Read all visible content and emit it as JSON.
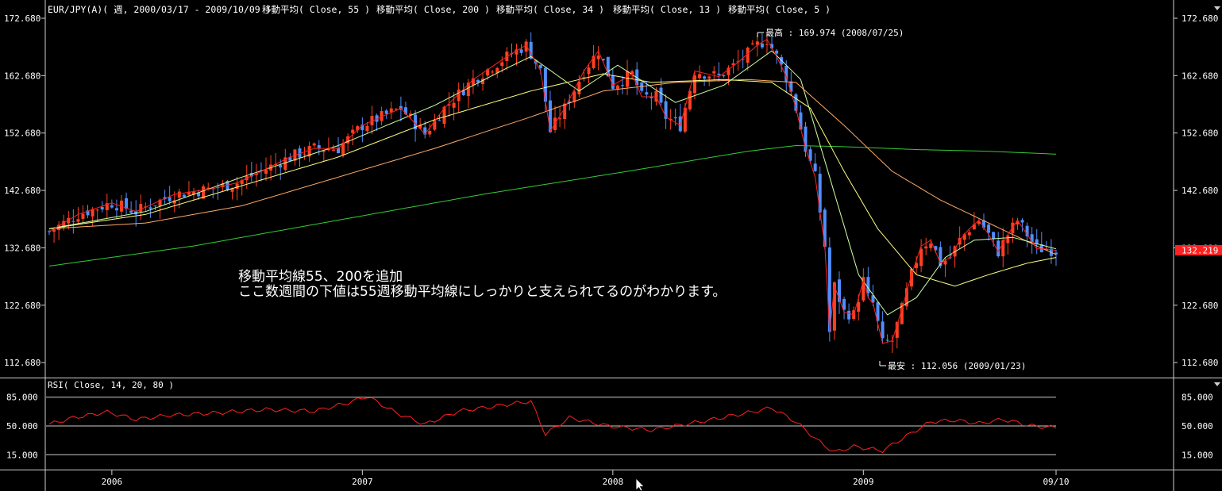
{
  "header": {
    "symbol": "EUR/JPY(A)( 週, 2000/03/17 - 2009/10/09 )",
    "ma_labels": [
      "移動平均( Close, 55 )",
      "移動平均( Close, 200 )",
      "移動平均( Close, 34 )",
      "移動平均( Close, 13 )",
      "移動平均( Close, 5 )"
    ]
  },
  "annotation": {
    "line1": "移動平均線55、200を追加",
    "line2": "ここ数週間の下値は55週移動平均線にしっかりと支えられてるのがわかります。"
  },
  "markers": {
    "high": "最高 : 169.974 (2008/07/25)",
    "low": "最安 : 112.056 (2009/01/23)"
  },
  "current_price": "132.219",
  "rsi": {
    "label": "RSI( Close, 14, 20, 80 )",
    "levels": [
      85,
      50,
      15
    ],
    "tick_labels": [
      "85.000",
      "50.000",
      "15.000"
    ]
  },
  "x_axis": {
    "labels": [
      "2006",
      "2007",
      "2008",
      "2009",
      "09/10"
    ]
  },
  "colors": {
    "up": "#ff4020",
    "down": "#4f8fff",
    "ma5": "#ff2020",
    "ma13": "#ccffa0",
    "ma34": "#ffff80",
    "ma55": "#ffaa66",
    "ma200": "#33cc33",
    "rsi": "#ff2020",
    "price_tag": "#ff2020"
  },
  "chart_data": {
    "type": "candlestick",
    "title": "EUR/JPY(A)( 週, 2000/03/17 - 2009/10/09 )",
    "y_ticks": [
      "172.680",
      "162.680",
      "152.680",
      "142.680",
      "132.680",
      "122.680",
      "112.680"
    ],
    "ylim": [
      111,
      174
    ],
    "x_anchors": [
      {
        "label": "2006",
        "week": 13
      },
      {
        "label": "2007",
        "week": 65
      },
      {
        "label": "2008",
        "week": 117
      },
      {
        "label": "2009",
        "week": 169
      },
      {
        "label": "09/10",
        "week": 209
      }
    ],
    "close_path": [
      {
        "w": 0,
        "v": 135.5
      },
      {
        "w": 6,
        "v": 138.5
      },
      {
        "w": 13,
        "v": 140.5
      },
      {
        "w": 18,
        "v": 139.0
      },
      {
        "w": 26,
        "v": 142.0
      },
      {
        "w": 34,
        "v": 143.0
      },
      {
        "w": 39,
        "v": 144.0
      },
      {
        "w": 44,
        "v": 146.0
      },
      {
        "w": 50,
        "v": 148.5
      },
      {
        "w": 55,
        "v": 150.0
      },
      {
        "w": 60,
        "v": 150.0
      },
      {
        "w": 65,
        "v": 154.0
      },
      {
        "w": 73,
        "v": 157.0
      },
      {
        "w": 78,
        "v": 152.5
      },
      {
        "w": 82,
        "v": 157.0
      },
      {
        "w": 88,
        "v": 162.0
      },
      {
        "w": 95,
        "v": 166.0
      },
      {
        "w": 99,
        "v": 168.0
      },
      {
        "w": 102,
        "v": 163.5
      },
      {
        "w": 104,
        "v": 153.0
      },
      {
        "w": 107,
        "v": 157.0
      },
      {
        "w": 111,
        "v": 163.5
      },
      {
        "w": 114,
        "v": 167.0
      },
      {
        "w": 117,
        "v": 161.0
      },
      {
        "w": 121,
        "v": 163.0
      },
      {
        "w": 123,
        "v": 159.0
      },
      {
        "w": 126,
        "v": 159.0
      },
      {
        "w": 128,
        "v": 155.5
      },
      {
        "w": 131,
        "v": 154.0
      },
      {
        "w": 134,
        "v": 163.5
      },
      {
        "w": 139,
        "v": 162.5
      },
      {
        "w": 143,
        "v": 165.0
      },
      {
        "w": 147,
        "v": 168.0
      },
      {
        "w": 149,
        "v": 169.0
      },
      {
        "w": 151,
        "v": 166.0
      },
      {
        "w": 153,
        "v": 162.5
      },
      {
        "w": 155,
        "v": 157.0
      },
      {
        "w": 157,
        "v": 150.0
      },
      {
        "w": 159,
        "v": 145.0
      },
      {
        "w": 161,
        "v": 133.0
      },
      {
        "w": 162,
        "v": 118.0
      },
      {
        "w": 163,
        "v": 126.0
      },
      {
        "w": 165,
        "v": 121.5
      },
      {
        "w": 167,
        "v": 121.0
      },
      {
        "w": 169,
        "v": 127.0
      },
      {
        "w": 170,
        "v": 124.0
      },
      {
        "w": 171,
        "v": 123.0
      },
      {
        "w": 173,
        "v": 116.0
      },
      {
        "w": 175,
        "v": 116.5
      },
      {
        "w": 177,
        "v": 122.0
      },
      {
        "w": 179,
        "v": 128.0
      },
      {
        "w": 181,
        "v": 133.0
      },
      {
        "w": 183,
        "v": 134.0
      },
      {
        "w": 185,
        "v": 130.0
      },
      {
        "w": 187,
        "v": 131.0
      },
      {
        "w": 189,
        "v": 134.0
      },
      {
        "w": 191,
        "v": 136.0
      },
      {
        "w": 193,
        "v": 137.5
      },
      {
        "w": 195,
        "v": 135.0
      },
      {
        "w": 197,
        "v": 132.0
      },
      {
        "w": 199,
        "v": 135.0
      },
      {
        "w": 201,
        "v": 137.5
      },
      {
        "w": 203,
        "v": 135.0
      },
      {
        "w": 205,
        "v": 132.5
      },
      {
        "w": 207,
        "v": 132.5
      },
      {
        "w": 209,
        "v": 132.219
      }
    ],
    "series": [
      {
        "name": "移動平均( Close, 200 )",
        "period": 200,
        "points": [
          {
            "w": 0,
            "v": 129.5
          },
          {
            "w": 30,
            "v": 133.0
          },
          {
            "w": 60,
            "v": 137.5
          },
          {
            "w": 90,
            "v": 142.0
          },
          {
            "w": 120,
            "v": 146.0
          },
          {
            "w": 145,
            "v": 149.5
          },
          {
            "w": 155,
            "v": 150.5
          },
          {
            "w": 165,
            "v": 150.3
          },
          {
            "w": 180,
            "v": 149.8
          },
          {
            "w": 195,
            "v": 149.5
          },
          {
            "w": 209,
            "v": 149.0
          }
        ]
      },
      {
        "name": "移動平均( Close, 55 )",
        "period": 55,
        "points": [
          {
            "w": 0,
            "v": 136.0
          },
          {
            "w": 20,
            "v": 137.0
          },
          {
            "w": 40,
            "v": 140.0
          },
          {
            "w": 60,
            "v": 145.0
          },
          {
            "w": 80,
            "v": 150.0
          },
          {
            "w": 100,
            "v": 155.5
          },
          {
            "w": 115,
            "v": 160.0
          },
          {
            "w": 130,
            "v": 161.5
          },
          {
            "w": 145,
            "v": 162.0
          },
          {
            "w": 155,
            "v": 161.5
          },
          {
            "w": 165,
            "v": 154.0
          },
          {
            "w": 175,
            "v": 146.0
          },
          {
            "w": 185,
            "v": 141.0
          },
          {
            "w": 195,
            "v": 137.0
          },
          {
            "w": 205,
            "v": 133.0
          },
          {
            "w": 209,
            "v": 131.5
          }
        ]
      },
      {
        "name": "移動平均( Close, 34 )",
        "period": 34,
        "points": [
          {
            "w": 0,
            "v": 136.0
          },
          {
            "w": 20,
            "v": 138.5
          },
          {
            "w": 40,
            "v": 143.5
          },
          {
            "w": 60,
            "v": 148.5
          },
          {
            "w": 80,
            "v": 155.0
          },
          {
            "w": 100,
            "v": 160.0
          },
          {
            "w": 115,
            "v": 163.0
          },
          {
            "w": 125,
            "v": 161.5
          },
          {
            "w": 140,
            "v": 162.0
          },
          {
            "w": 150,
            "v": 161.5
          },
          {
            "w": 158,
            "v": 157.0
          },
          {
            "w": 165,
            "v": 146.0
          },
          {
            "w": 172,
            "v": 136.0
          },
          {
            "w": 180,
            "v": 128.0
          },
          {
            "w": 188,
            "v": 126.0
          },
          {
            "w": 195,
            "v": 128.0
          },
          {
            "w": 203,
            "v": 130.0
          },
          {
            "w": 209,
            "v": 131.0
          }
        ]
      },
      {
        "name": "移動平均( Close, 13 )",
        "period": 13,
        "points": [
          {
            "w": 0,
            "v": 136.0
          },
          {
            "w": 20,
            "v": 139.0
          },
          {
            "w": 40,
            "v": 145.0
          },
          {
            "w": 60,
            "v": 150.5
          },
          {
            "w": 80,
            "v": 157.5
          },
          {
            "w": 95,
            "v": 164.0
          },
          {
            "w": 100,
            "v": 166.0
          },
          {
            "w": 110,
            "v": 160.0
          },
          {
            "w": 118,
            "v": 164.5
          },
          {
            "w": 130,
            "v": 158.0
          },
          {
            "w": 140,
            "v": 161.0
          },
          {
            "w": 150,
            "v": 167.0
          },
          {
            "w": 156,
            "v": 162.0
          },
          {
            "w": 162,
            "v": 145.0
          },
          {
            "w": 168,
            "v": 128.0
          },
          {
            "w": 174,
            "v": 121.0
          },
          {
            "w": 180,
            "v": 124.0
          },
          {
            "w": 186,
            "v": 131.0
          },
          {
            "w": 192,
            "v": 134.0
          },
          {
            "w": 200,
            "v": 134.5
          },
          {
            "w": 209,
            "v": 132.5
          }
        ]
      }
    ],
    "rsi_path": [
      {
        "w": 0,
        "v": 52
      },
      {
        "w": 5,
        "v": 60
      },
      {
        "w": 12,
        "v": 67
      },
      {
        "w": 18,
        "v": 58
      },
      {
        "w": 25,
        "v": 63
      },
      {
        "w": 35,
        "v": 66
      },
      {
        "w": 45,
        "v": 70
      },
      {
        "w": 55,
        "v": 68
      },
      {
        "w": 62,
        "v": 78
      },
      {
        "w": 66,
        "v": 86
      },
      {
        "w": 72,
        "v": 66
      },
      {
        "w": 78,
        "v": 52
      },
      {
        "w": 85,
        "v": 68
      },
      {
        "w": 95,
        "v": 76
      },
      {
        "w": 100,
        "v": 80
      },
      {
        "w": 103,
        "v": 40
      },
      {
        "w": 108,
        "v": 60
      },
      {
        "w": 116,
        "v": 50
      },
      {
        "w": 125,
        "v": 45
      },
      {
        "w": 135,
        "v": 55
      },
      {
        "w": 145,
        "v": 66
      },
      {
        "w": 150,
        "v": 72
      },
      {
        "w": 155,
        "v": 55
      },
      {
        "w": 160,
        "v": 30
      },
      {
        "w": 163,
        "v": 18
      },
      {
        "w": 167,
        "v": 25
      },
      {
        "w": 173,
        "v": 20
      },
      {
        "w": 178,
        "v": 38
      },
      {
        "w": 183,
        "v": 55
      },
      {
        "w": 188,
        "v": 57
      },
      {
        "w": 193,
        "v": 53
      },
      {
        "w": 198,
        "v": 58
      },
      {
        "w": 204,
        "v": 50
      },
      {
        "w": 209,
        "v": 48
      }
    ]
  }
}
